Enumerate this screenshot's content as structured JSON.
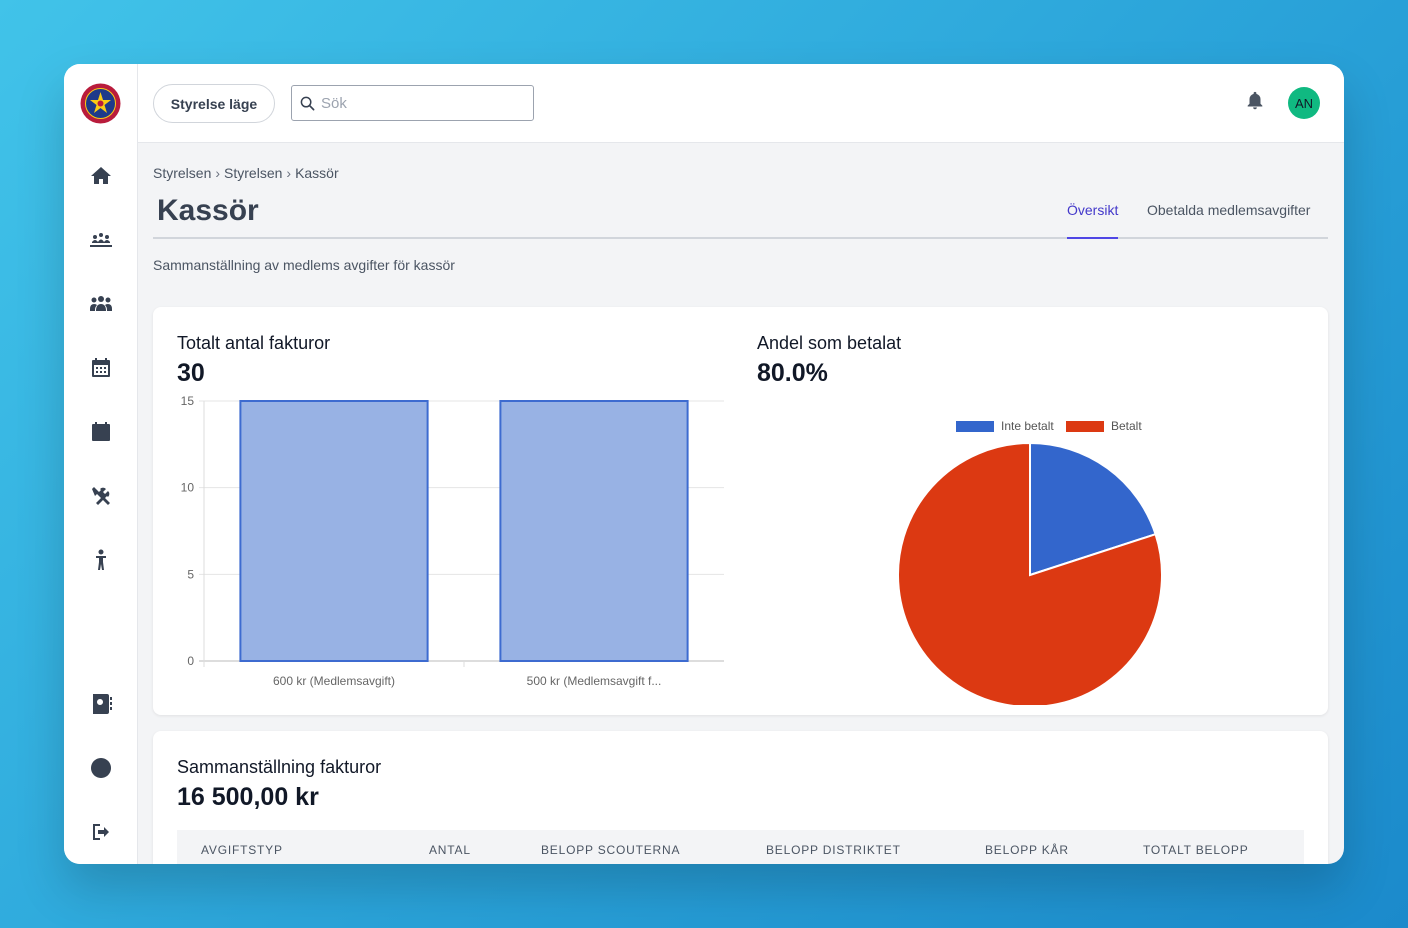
{
  "nav": {
    "items": [
      {
        "icon": "home-icon"
      },
      {
        "icon": "campfire-group-icon"
      },
      {
        "icon": "users-icon"
      },
      {
        "icon": "calendar-grid-icon"
      },
      {
        "icon": "calendar-icon"
      },
      {
        "icon": "tools-icon"
      },
      {
        "icon": "child-icon"
      }
    ],
    "bottom_items": [
      {
        "icon": "address-book-icon"
      },
      {
        "icon": "globe-icon"
      },
      {
        "icon": "logout-icon"
      }
    ]
  },
  "topbar": {
    "mode_button": "Styrelse läge",
    "search_placeholder": "Sök",
    "avatar_initials": "AN"
  },
  "breadcrumb": [
    "Styrelsen",
    "Styrelsen",
    "Kassör"
  ],
  "page": {
    "title": "Kassör",
    "subtitle": "Sammanställning av medlems avgifter för kassör"
  },
  "tabs": [
    {
      "label": "Översikt",
      "active": true
    },
    {
      "label": "Obetalda medlemsavgifter",
      "active": false
    }
  ],
  "stats": {
    "invoices_label": "Totalt antal fakturor",
    "invoices_value": "30",
    "paid_label": "Andel som betalat",
    "paid_value": "80.0%"
  },
  "chart_data": [
    {
      "type": "bar",
      "categories": [
        "600 kr (Medlemsavgift)",
        "500 kr (Medlemsavgift f..."
      ],
      "values": [
        15,
        15
      ],
      "ylim": [
        0,
        15
      ],
      "yticks": [
        0,
        5,
        10,
        15
      ],
      "color": "#98b2e4",
      "border_color": "#3d6bd0",
      "grid": true
    },
    {
      "type": "pie",
      "labels": [
        "Inte betalt",
        "Betalt"
      ],
      "values": [
        20,
        80
      ],
      "colors": [
        "#3366cc",
        "#dc3912"
      ],
      "legend": "top"
    }
  ],
  "summary": {
    "label": "Sammanställning fakturor",
    "value": "16 500,00 kr",
    "columns": [
      "AVGIFTSTYP",
      "ANTAL",
      "BELOPP SCOUTERNA",
      "BELOPP DISTRIKTET",
      "BELOPP KÅR",
      "TOTALT BELOPP"
    ]
  }
}
